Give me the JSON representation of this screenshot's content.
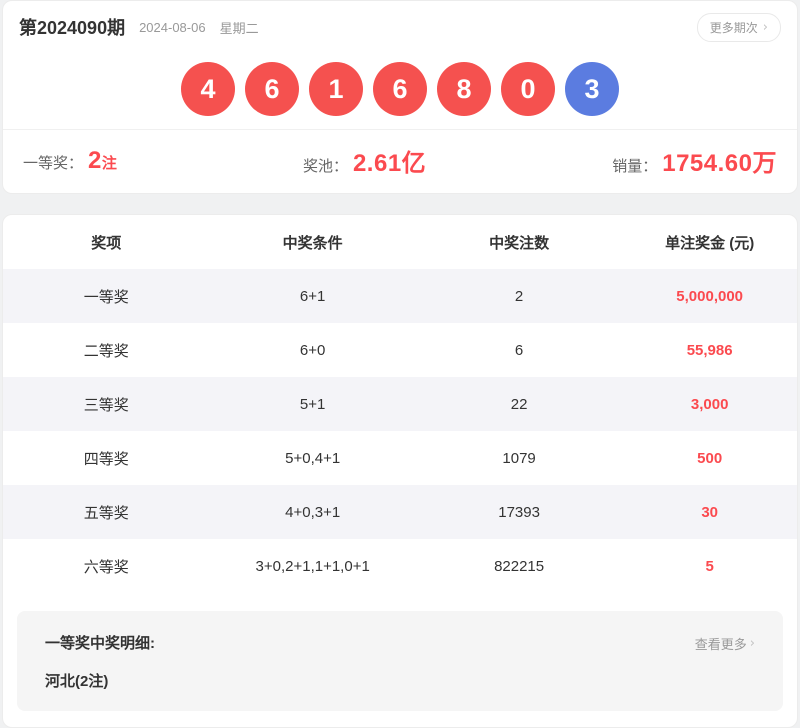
{
  "colors": {
    "accent_red": "#fb4a4f",
    "ball_red": "#f5514f",
    "ball_blue": "#5b7ce0"
  },
  "header": {
    "issue": "第2024090期",
    "date": "2024-08-06",
    "weekday": "星期二",
    "more_label": "更多期次",
    "more_chevron": "›"
  },
  "balls": [
    {
      "value": "4",
      "color": "red"
    },
    {
      "value": "6",
      "color": "red"
    },
    {
      "value": "1",
      "color": "red"
    },
    {
      "value": "6",
      "color": "red"
    },
    {
      "value": "8",
      "color": "red"
    },
    {
      "value": "0",
      "color": "red"
    },
    {
      "value": "3",
      "color": "blue"
    }
  ],
  "stats": [
    {
      "label": "一等奖：",
      "value": "2",
      "unit": "注"
    },
    {
      "label": "奖池：",
      "value": "2.61亿",
      "unit": ""
    },
    {
      "label": "销量：",
      "value": "1754.60万",
      "unit": ""
    }
  ],
  "table": {
    "headers": [
      "奖项",
      "中奖条件",
      "中奖注数",
      "单注奖金 (元)"
    ],
    "rows": [
      {
        "prize": "一等奖",
        "condition": "6+1",
        "count": "2",
        "amount": "5,000,000"
      },
      {
        "prize": "二等奖",
        "condition": "6+0",
        "count": "6",
        "amount": "55,986"
      },
      {
        "prize": "三等奖",
        "condition": "5+1",
        "count": "22",
        "amount": "3,000"
      },
      {
        "prize": "四等奖",
        "condition": "5+0,4+1",
        "count": "1079",
        "amount": "500"
      },
      {
        "prize": "五等奖",
        "condition": "4+0,3+1",
        "count": "17393",
        "amount": "30"
      },
      {
        "prize": "六等奖",
        "condition": "3+0,2+1,1+1,0+1",
        "count": "822215",
        "amount": "5"
      }
    ]
  },
  "detail": {
    "title": "一等奖中奖明细:",
    "content": "河北(2注)",
    "more_label": "查看更多",
    "more_chevron": "›"
  }
}
